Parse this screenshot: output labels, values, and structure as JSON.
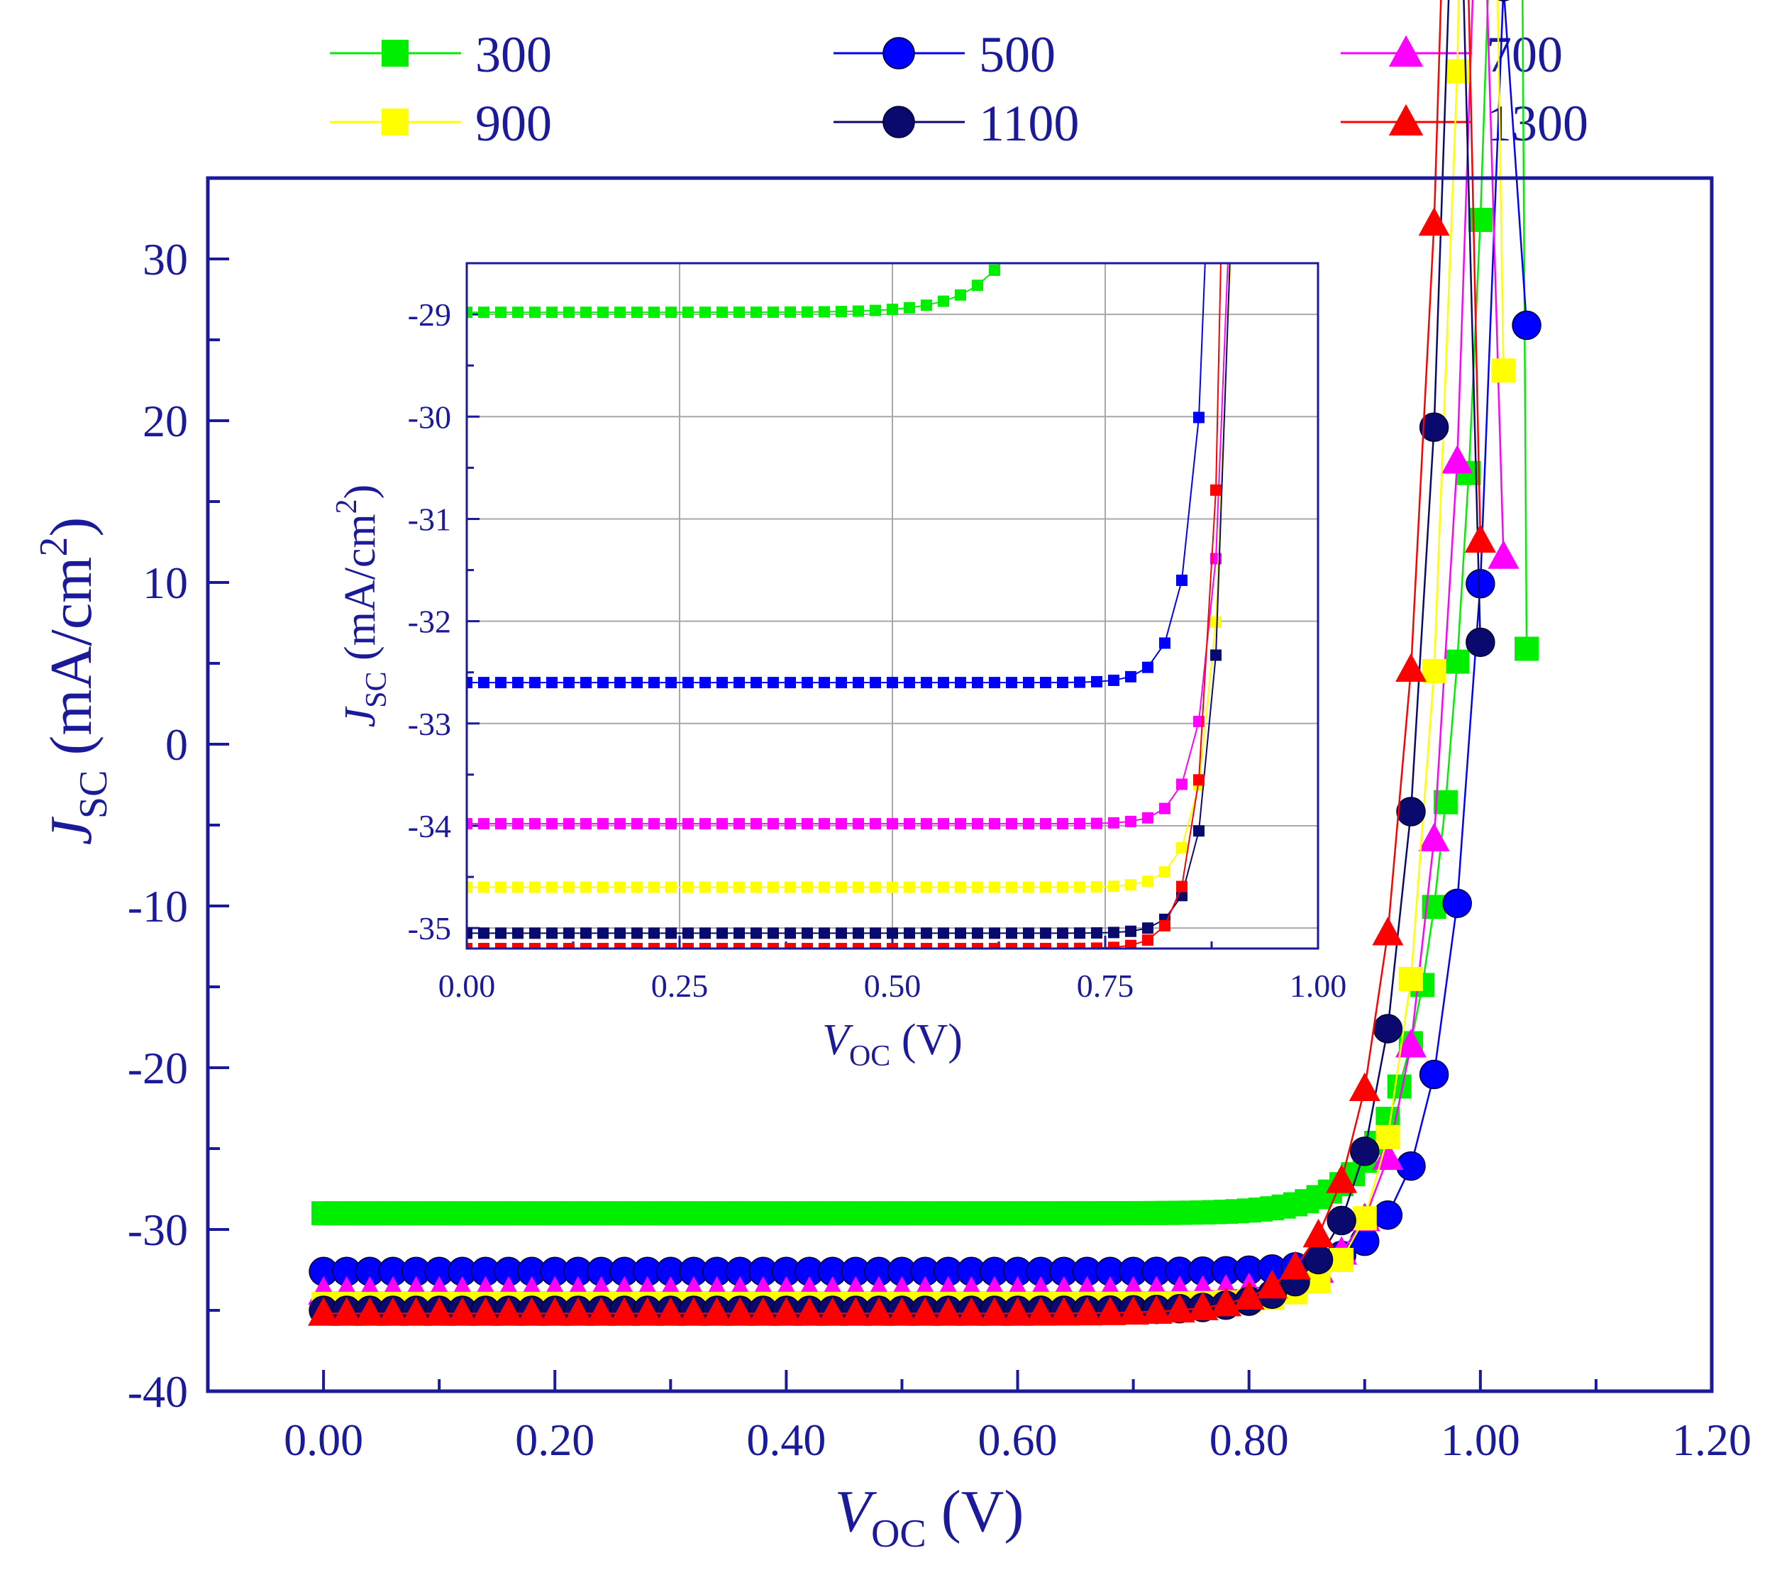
{
  "chart_data": [
    {
      "id": "main",
      "type": "scatter",
      "title": "",
      "xlabel": {
        "main": "V",
        "sub": "OC",
        "unit": " (V)"
      },
      "ylabel": {
        "main": "J",
        "sub": "SC",
        "unit_pre": " (mA/cm",
        "unit_sup": "2",
        "unit_post": ")"
      },
      "xlim": [
        -0.1,
        1.2
      ],
      "ylim": [
        -40,
        35
      ],
      "xticks": [
        0.0,
        0.2,
        0.4,
        0.6,
        0.8,
        1.0,
        1.2
      ],
      "xtick_labels": [
        "0.00",
        "0.20",
        "0.40",
        "0.60",
        "0.80",
        "1.00",
        "1.20"
      ],
      "yticks": [
        -40,
        -30,
        -20,
        -10,
        0,
        10,
        20,
        30
      ],
      "ytick_labels": [
        "-40",
        "-30",
        "-20",
        "-10",
        "0",
        "10",
        "20",
        "30"
      ],
      "grid": false,
      "legend": "top",
      "series": [
        {
          "name": "300",
          "color": "#00ee00",
          "marker": "square",
          "plateau": -29.0,
          "knee": 0.86,
          "scale": 0.034,
          "x_end": 1.04,
          "x_step": 0.01,
          "end_value": 5.9
        },
        {
          "name": "500",
          "color": "#0000ff",
          "marker": "circle",
          "plateau": -32.6,
          "knee": 0.88,
          "scale": 0.032,
          "x_end": 1.04,
          "x_step": 0.02,
          "end_value": 25.9
        },
        {
          "name": "700",
          "color": "#ff00ff",
          "marker": "triangle",
          "plateau": -33.9,
          "knee": 0.85,
          "scale": 0.033,
          "x_end": 1.02,
          "x_step": 0.02,
          "end_value": 11.6
        },
        {
          "name": "900",
          "color": "#ffff00",
          "marker": "square",
          "plateau": -34.6,
          "knee": 0.85,
          "scale": 0.03,
          "x_end": 1.02,
          "x_step": 0.02,
          "end_value": 23.1
        },
        {
          "name": "1100",
          "color": "#0a0a6e",
          "marker": "circle",
          "plateau": -35.0,
          "knee": 0.82,
          "scale": 0.035,
          "x_end": 1.0,
          "x_step": 0.02,
          "end_value": 6.3
        },
        {
          "name": "1300",
          "color": "#ff0000",
          "marker": "triangle",
          "plateau": -35.2,
          "knee": 0.8,
          "scale": 0.038,
          "x_end": 1.0,
          "x_step": 0.02,
          "end_value": 12.6
        }
      ]
    },
    {
      "id": "inset",
      "type": "scatter",
      "title": "",
      "xlabel": {
        "main": "V",
        "sub": "OC",
        "unit": " (V)"
      },
      "ylabel": {
        "main": "J",
        "sub": "SC",
        "unit_pre": " (mA/cm",
        "unit_sup": "2",
        "unit_post": ")"
      },
      "xlim": [
        0.0,
        1.0
      ],
      "ylim": [
        -35.2,
        -28.5
      ],
      "xticks": [
        0.0,
        0.25,
        0.5,
        0.75,
        1.0
      ],
      "xtick_labels": [
        "0.00",
        "0.25",
        "0.50",
        "0.75",
        "1.00"
      ],
      "yticks": [
        -35,
        -34,
        -33,
        -32,
        -31,
        -30,
        -29
      ],
      "ytick_labels": [
        "-35",
        "-34",
        "-33",
        "-32",
        "-31",
        "-30",
        "-29"
      ],
      "grid": true,
      "x_step": 0.02,
      "marker": "square",
      "series": [
        {
          "name": "300",
          "color": "#00ee00",
          "plateau": -28.98,
          "knee": 0.66,
          "scale": 0.045
        },
        {
          "name": "500",
          "color": "#0000ff",
          "plateau": -32.6,
          "knee": 0.84,
          "scale": 0.021
        },
        {
          "name": "700",
          "color": "#ff00ff",
          "plateau": -33.98,
          "knee": 0.86,
          "scale": 0.021
        },
        {
          "name": "900",
          "color": "#ffff00",
          "plateau": -34.6,
          "knee": 0.86,
          "scale": 0.021
        },
        {
          "name": "1100",
          "color": "#0a0a6e",
          "plateau": -35.05,
          "knee": 0.86,
          "scale": 0.02
        },
        {
          "name": "1300",
          "color": "#ff0000",
          "plateau": -35.2,
          "knee": 0.85,
          "scale": 0.02
        }
      ]
    }
  ],
  "colors": {
    "axis": "#1a1a9a",
    "grid": "#a8a8a8"
  }
}
